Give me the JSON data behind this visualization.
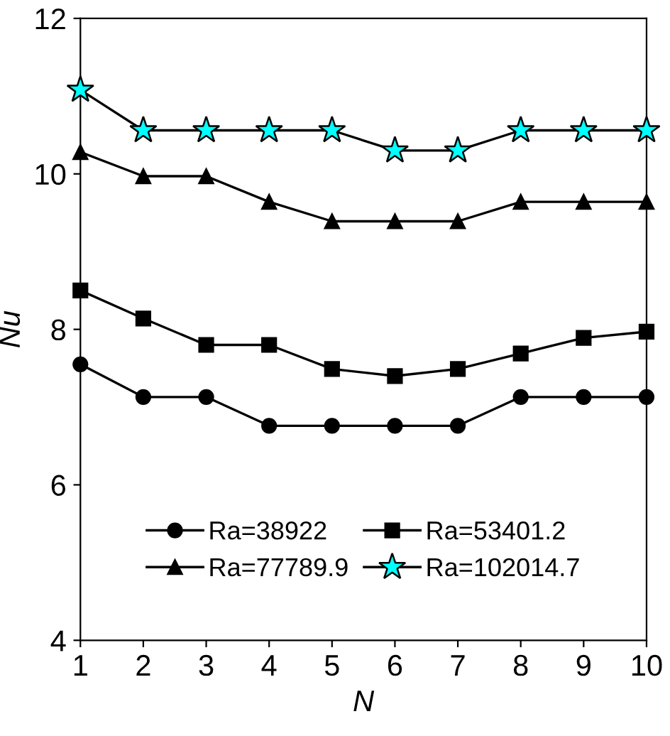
{
  "chart_data": {
    "type": "line",
    "xlabel": "N",
    "ylabel": "Nu",
    "x": [
      1,
      2,
      3,
      4,
      5,
      6,
      7,
      8,
      9,
      10
    ],
    "series": [
      {
        "name": "Ra=38922",
        "color": "#000000",
        "marker": "circle",
        "values": [
          7.55,
          7.13,
          7.13,
          6.76,
          6.76,
          6.76,
          6.76,
          7.13,
          7.13,
          7.13
        ]
      },
      {
        "name": "Ra=53401.2",
        "color": "#000000",
        "marker": "square",
        "values": [
          8.5,
          8.14,
          7.8,
          7.8,
          7.49,
          7.4,
          7.49,
          7.69,
          7.89,
          7.97
        ]
      },
      {
        "name": "Ra=77789.9",
        "color": "#000000",
        "marker": "triangle",
        "values": [
          10.28,
          9.97,
          9.97,
          9.64,
          9.39,
          9.39,
          9.39,
          9.64,
          9.64,
          9.64
        ]
      },
      {
        "name": "Ra=102014.7",
        "color": "#00ffff",
        "marker": "star",
        "values": [
          11.08,
          10.56,
          10.56,
          10.56,
          10.56,
          10.3,
          10.3,
          10.56,
          10.56,
          10.56
        ]
      }
    ],
    "xlim": [
      1,
      10
    ],
    "xticks": [
      1,
      2,
      3,
      4,
      5,
      6,
      7,
      8,
      9,
      10
    ],
    "ylim": [
      4,
      12
    ],
    "yticks": [
      4,
      6,
      8,
      10,
      12
    ],
    "grid": false,
    "legend": "bottom",
    "line_style": "solid"
  }
}
